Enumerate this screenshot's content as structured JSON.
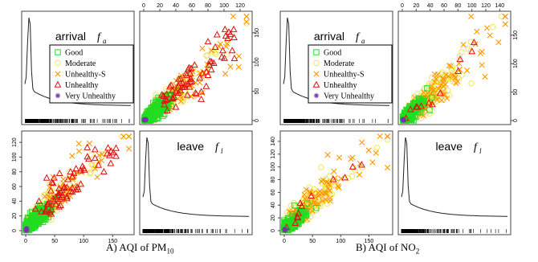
{
  "figure": {
    "captions": [
      {
        "text": "A) AQI of PM",
        "sub": "10"
      },
      {
        "text": "B) AQI of NO",
        "sub": "2"
      }
    ]
  },
  "chart_data": [
    {
      "type": "scatter",
      "panel_set": "A) AQI of PM10",
      "diagonal_labels": [
        {
          "text": "arrival",
          "symbol": "f",
          "sub": "a"
        },
        {
          "text": "leave",
          "symbol": "f",
          "sub": "l"
        }
      ],
      "legend": {
        "placement": "inside arrival diagonal panel",
        "entries": [
          {
            "label": "Good",
            "marker": "square",
            "color": "#22dd22"
          },
          {
            "label": "Moderate",
            "marker": "circle",
            "color": "#f0e040"
          },
          {
            "label": "Unhealthy-S",
            "marker": "x",
            "color": "#ff9900"
          },
          {
            "label": "Unhealthy",
            "marker": "triangle",
            "color": "#dd1111"
          },
          {
            "label": "Very Unhealthy",
            "marker": "asterisk",
            "color": "#7733aa"
          }
        ]
      },
      "top_axis": {
        "ticks": [
          "0",
          "20",
          "40",
          "60",
          "80",
          "100",
          "120"
        ],
        "range": [
          0,
          130
        ]
      },
      "right_axis": {
        "ticks": [
          "0",
          "50",
          "100",
          "150"
        ],
        "range": [
          0,
          180
        ]
      },
      "left_axis": {
        "ticks": [
          "0",
          "20",
          "40",
          "60",
          "80",
          "100",
          "120"
        ],
        "range": [
          0,
          130
        ]
      },
      "bottom_axis": {
        "ticks": [
          "0",
          "50",
          "100",
          "150"
        ],
        "range": [
          0,
          180
        ]
      },
      "trend": {
        "leave_per_arrival": 1.15
      },
      "points_approx": {
        "Good": 280,
        "Moderate": 200,
        "Unhealthy-S": 90,
        "Unhealthy": 70,
        "Very Unhealthy": 6
      }
    },
    {
      "type": "scatter",
      "panel_set": "B) AQI of NO2",
      "diagonal_labels": [
        {
          "text": "arrival",
          "symbol": "f",
          "sub": "a"
        },
        {
          "text": "leave",
          "symbol": "f",
          "sub": "l"
        }
      ],
      "legend": {
        "placement": "inside arrival diagonal panel",
        "entries": [
          {
            "label": "Good",
            "marker": "square",
            "color": "#22dd22"
          },
          {
            "label": "Moderate",
            "marker": "circle",
            "color": "#f0e040"
          },
          {
            "label": "Unhealthy-S",
            "marker": "x",
            "color": "#ff9900"
          },
          {
            "label": "Unhealthy",
            "marker": "triangle",
            "color": "#dd1111"
          },
          {
            "label": "Very Unhealthy",
            "marker": "asterisk",
            "color": "#7733aa"
          }
        ]
      },
      "top_axis": {
        "ticks": [
          "0",
          "20",
          "40",
          "60",
          "80",
          "100",
          "120",
          "140"
        ],
        "range": [
          0,
          150
        ]
      },
      "right_axis": {
        "ticks": [
          "0",
          "50",
          "100",
          "150"
        ],
        "range": [
          0,
          185
        ]
      },
      "left_axis": {
        "ticks": [
          "0",
          "20",
          "40",
          "60",
          "80",
          "100",
          "120",
          "140"
        ],
        "range": [
          0,
          150
        ]
      },
      "bottom_axis": {
        "ticks": [
          "0",
          "50",
          "100",
          "150"
        ],
        "range": [
          0,
          185
        ]
      },
      "trend": {
        "leave_per_arrival": 1.1
      },
      "points_approx": {
        "Good": 260,
        "Moderate": 320,
        "Unhealthy-S": 140,
        "Unhealthy": 12,
        "Very Unhealthy": 6
      }
    }
  ]
}
